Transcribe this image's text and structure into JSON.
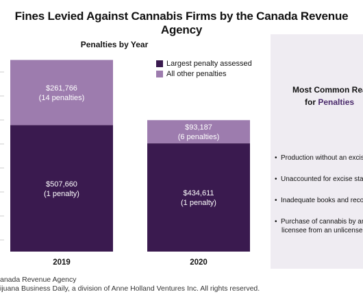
{
  "title": "Fines Levied Against Cannabis Firms by the Canada Revenue Agency",
  "subtitle": "Penalties by Year",
  "legend": {
    "items": [
      {
        "label": "Largest penalty assessed",
        "color": "#3a1a4f"
      },
      {
        "label": "All other penalties",
        "color": "#9d7cae"
      }
    ]
  },
  "chart_data": {
    "type": "bar",
    "stacked": true,
    "title": "Penalties by Year",
    "categories": [
      "2019",
      "2020"
    ],
    "series": [
      {
        "name": "Largest penalty assessed",
        "values": [
          507660,
          434611
        ],
        "color": "#3a1a4f"
      },
      {
        "name": "All other penalties",
        "values": [
          261766,
          93187
        ],
        "color": "#9d7cae"
      }
    ],
    "data_labels": [
      [
        {
          "line1": "$507,660",
          "line2": "(1 penalty)"
        },
        {
          "line1": "$434,611",
          "line2": "(1 penalty)"
        }
      ],
      [
        {
          "line1": "$261,766",
          "line2": "(14 penalties)"
        },
        {
          "line1": "$93,187",
          "line2": "(6 penalties)"
        }
      ]
    ],
    "ylim": [
      0,
      900000
    ],
    "grid": false,
    "legend_position": "top-right"
  },
  "panel": {
    "heading_line1": "Most Common Rea",
    "heading_line2_prefix": "for ",
    "heading_line2_accent": "Penalties",
    "reasons": [
      {
        "line1": "Production without an excis",
        "line2": ""
      },
      {
        "line1": "Unaccounted for excise sta",
        "line2": ""
      },
      {
        "line1": "Inadequate books and reco",
        "line2": ""
      },
      {
        "line1": "Purchase of cannabis by ar",
        "line2": "licensee from an unlicense"
      }
    ]
  },
  "footer": {
    "source": "anada Revenue Agency",
    "copyright": "ijuana Business Daily, a division of Anne Holland Ventures Inc. All rights reserved."
  }
}
